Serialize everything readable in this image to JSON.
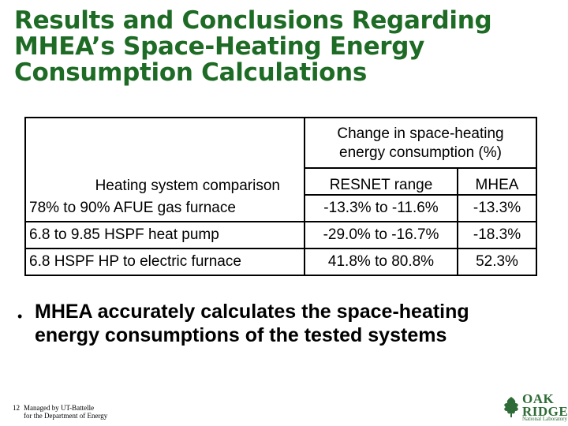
{
  "title": {
    "line1": "Results and Conclusions Regarding",
    "line2": "MHEA’s Space-Heating Energy",
    "line3": "Consumption Calculations"
  },
  "table": {
    "change_header_line1": "Change in space-heating",
    "change_header_line2": "energy consumption (%)",
    "col_comparison": "Heating system comparison",
    "col_resnet": "RESNET range",
    "col_mhea": "MHEA",
    "rows": [
      {
        "system": "78% to 90% AFUE gas furnace",
        "resnet": "-13.3% to -11.6%",
        "mhea": "-13.3%"
      },
      {
        "system": "6.8 to 9.85 HSPF heat pump",
        "resnet": "-29.0% to -16.7%",
        "mhea": "-18.3%"
      },
      {
        "system": "6.8 HSPF HP to electric furnace",
        "resnet": "41.8% to 80.8%",
        "mhea": "52.3%"
      }
    ]
  },
  "bullet": {
    "symbol": "•",
    "text": "MHEA accurately calculates the space-heating energy consumptions of the tested systems"
  },
  "footer": {
    "page_number": "12",
    "line1": "Managed by UT-Battelle",
    "line2": "for the Department of Energy"
  },
  "logo": {
    "word1": "OAK",
    "word2": "RIDGE",
    "sub": "National Laboratory",
    "color": "#2e6b36"
  },
  "colors": {
    "title": "#1e6b25"
  }
}
